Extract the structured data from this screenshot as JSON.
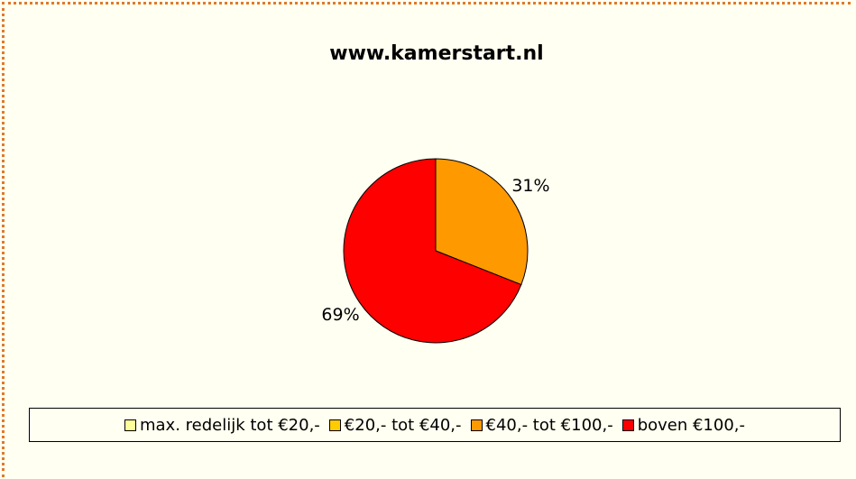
{
  "chart_data": {
    "type": "pie",
    "title": "www.kamerstart.nl",
    "categories": [
      "max. redelijk tot €20,-",
      "€20,- tot €40,-",
      "€40,- tot €100,-",
      "boven €100,-"
    ],
    "values": [
      0,
      0,
      31,
      69
    ],
    "value_labels": [
      null,
      null,
      "31%",
      "69%"
    ],
    "colors": [
      "#FFFF99",
      "#FFCC00",
      "#FF9900",
      "#FF0000"
    ],
    "legend": "bottom"
  }
}
